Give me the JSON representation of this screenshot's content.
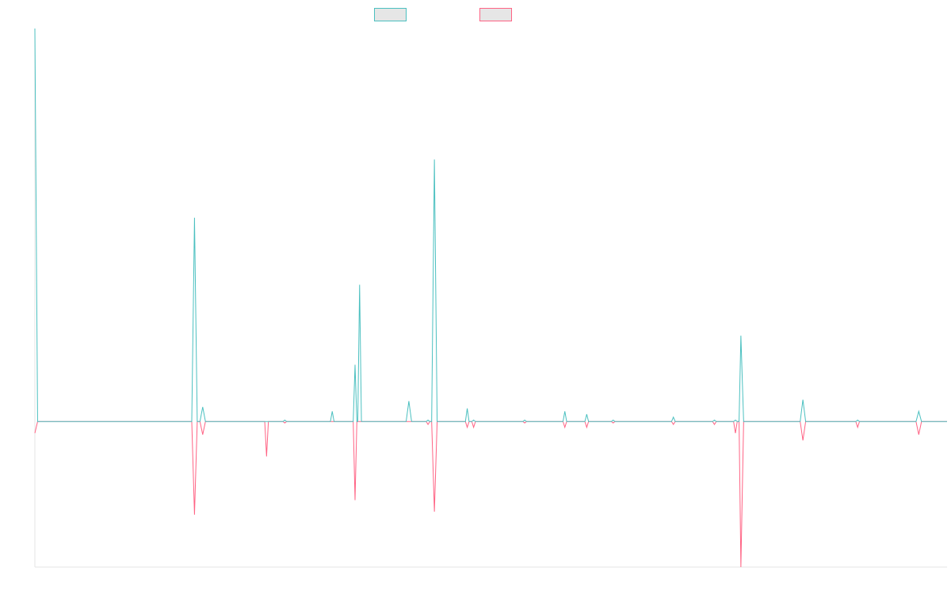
{
  "chart_data": {
    "type": "line",
    "title": "",
    "xlabel": "",
    "ylabel": "",
    "grid": false,
    "legend_position": "top-center",
    "x_range": [
      0,
      100
    ],
    "ylim": [
      -100,
      270
    ],
    "baseline_value": 0,
    "colors": {
      "series_1": "#4bc0c0",
      "series_2": "#ff6384",
      "axis": "#e6e6e6",
      "legend_fill": "#e6e6e6"
    },
    "legend": [
      {
        "name": "",
        "color": "#4bc0c0"
      },
      {
        "name": "",
        "color": "#ff6384"
      }
    ],
    "series": [
      {
        "name": "",
        "color": "#4bc0c0",
        "points": [
          [
            0,
            270
          ],
          [
            0.3,
            0
          ],
          [
            17.2,
            0
          ],
          [
            17.5,
            140
          ],
          [
            17.8,
            0
          ],
          [
            18.1,
            0
          ],
          [
            18.4,
            10
          ],
          [
            18.7,
            0
          ],
          [
            27.2,
            0
          ],
          [
            27.4,
            1
          ],
          [
            27.6,
            0
          ],
          [
            32.4,
            0
          ],
          [
            32.6,
            7
          ],
          [
            32.8,
            0
          ],
          [
            34.9,
            0
          ],
          [
            35.1,
            39
          ],
          [
            35.3,
            0
          ],
          [
            35.4,
            0
          ],
          [
            35.6,
            94
          ],
          [
            35.8,
            0
          ],
          [
            40.7,
            0
          ],
          [
            41,
            14
          ],
          [
            41.3,
            0
          ],
          [
            42.9,
            0
          ],
          [
            43.1,
            1
          ],
          [
            43.3,
            0
          ],
          [
            43.5,
            0
          ],
          [
            43.8,
            180
          ],
          [
            44.1,
            0
          ],
          [
            47.2,
            0
          ],
          [
            47.4,
            9
          ],
          [
            47.6,
            0
          ],
          [
            47.9,
            0
          ],
          [
            48.1,
            1
          ],
          [
            48.3,
            0
          ],
          [
            53.5,
            0
          ],
          [
            53.7,
            1
          ],
          [
            53.9,
            0
          ],
          [
            57.9,
            0
          ],
          [
            58.1,
            7
          ],
          [
            58.3,
            0
          ],
          [
            60.3,
            0
          ],
          [
            60.5,
            5
          ],
          [
            60.7,
            0
          ],
          [
            63.2,
            0
          ],
          [
            63.4,
            1
          ],
          [
            63.6,
            0
          ],
          [
            69.8,
            0
          ],
          [
            70,
            3
          ],
          [
            70.2,
            0
          ],
          [
            74.3,
            0
          ],
          [
            74.5,
            1
          ],
          [
            74.7,
            0
          ],
          [
            76.6,
            0
          ],
          [
            76.8,
            1
          ],
          [
            77,
            0
          ],
          [
            77.2,
            0
          ],
          [
            77.4,
            59
          ],
          [
            77.7,
            0
          ],
          [
            83.9,
            0
          ],
          [
            84.2,
            15
          ],
          [
            84.5,
            0
          ],
          [
            90,
            0
          ],
          [
            90.2,
            1
          ],
          [
            90.4,
            0
          ],
          [
            96.6,
            0
          ],
          [
            96.9,
            7
          ],
          [
            97.2,
            0
          ],
          [
            100,
            0
          ]
        ]
      },
      {
        "name": "",
        "color": "#ff6384",
        "points": [
          [
            0,
            -8
          ],
          [
            0.3,
            0
          ],
          [
            17.2,
            0
          ],
          [
            17.5,
            -64
          ],
          [
            17.8,
            0
          ],
          [
            18.1,
            0
          ],
          [
            18.4,
            -9
          ],
          [
            18.7,
            0
          ],
          [
            25.2,
            0
          ],
          [
            25.4,
            -24
          ],
          [
            25.6,
            0
          ],
          [
            27.2,
            0
          ],
          [
            27.4,
            -1
          ],
          [
            27.6,
            0
          ],
          [
            34.9,
            0
          ],
          [
            35.1,
            -54
          ],
          [
            35.3,
            0
          ],
          [
            42.9,
            0
          ],
          [
            43.1,
            -2
          ],
          [
            43.3,
            0
          ],
          [
            43.5,
            0
          ],
          [
            43.8,
            -62
          ],
          [
            44.1,
            0
          ],
          [
            47.2,
            0
          ],
          [
            47.4,
            -4
          ],
          [
            47.6,
            0
          ],
          [
            47.9,
            0
          ],
          [
            48.1,
            -4
          ],
          [
            48.3,
            0
          ],
          [
            53.5,
            0
          ],
          [
            53.7,
            -1
          ],
          [
            53.9,
            0
          ],
          [
            57.9,
            0
          ],
          [
            58.1,
            -4
          ],
          [
            58.3,
            0
          ],
          [
            60.3,
            0
          ],
          [
            60.5,
            -4
          ],
          [
            60.7,
            0
          ],
          [
            63.2,
            0
          ],
          [
            63.4,
            -1
          ],
          [
            63.6,
            0
          ],
          [
            69.8,
            0
          ],
          [
            70,
            -2
          ],
          [
            70.2,
            0
          ],
          [
            74.3,
            0
          ],
          [
            74.5,
            -2
          ],
          [
            74.7,
            0
          ],
          [
            76.6,
            0
          ],
          [
            76.8,
            -8
          ],
          [
            77,
            0
          ],
          [
            77.2,
            0
          ],
          [
            77.4,
            -100
          ],
          [
            77.7,
            0
          ],
          [
            83.9,
            0
          ],
          [
            84.2,
            -13
          ],
          [
            84.5,
            0
          ],
          [
            90,
            0
          ],
          [
            90.2,
            -4
          ],
          [
            90.4,
            0
          ],
          [
            96.6,
            0
          ],
          [
            96.9,
            -9
          ],
          [
            97.2,
            0
          ],
          [
            100,
            0
          ]
        ]
      }
    ]
  }
}
